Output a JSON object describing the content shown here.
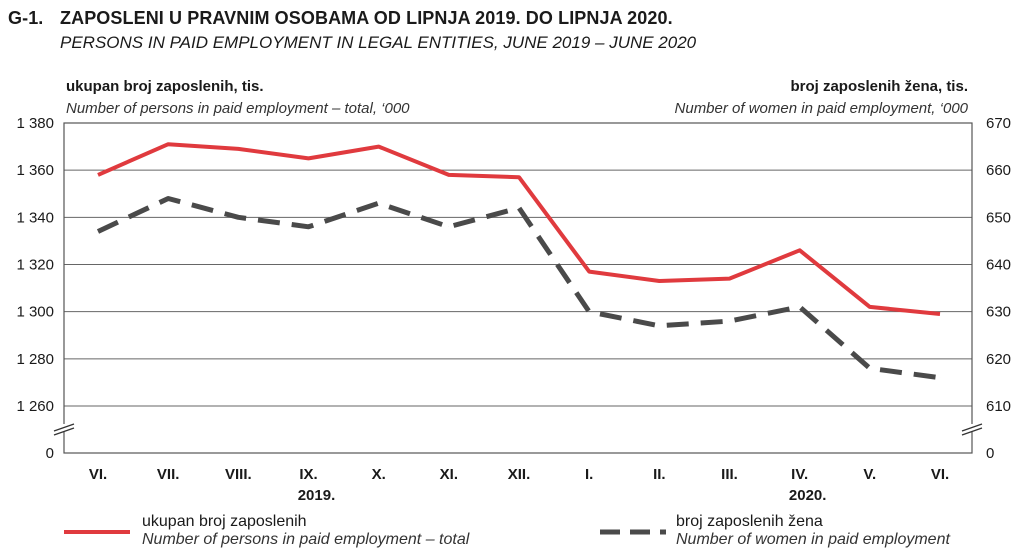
{
  "header": {
    "code": "G-1.",
    "title": "ZAPOSLENI U PRAVNIM OSOBAMA OD LIPNJA 2019. DO LIPNJA 2020.",
    "subtitle": "PERSONS IN PAID EMPLOYMENT IN LEGAL ENTITIES, JUNE 2019 – JUNE 2020"
  },
  "axes": {
    "left_title": "ukupan broj zaposlenih, tis.",
    "left_subtitle": "Number of persons in paid employment – total, ‘000",
    "right_title": "broj zaposlenih žena, tis.",
    "right_subtitle": "Number of women in paid employment, ‘000"
  },
  "legend": {
    "total_line1": "ukupan broj zaposlenih",
    "total_line2": "Number of persons in paid employment – total",
    "women_line1": "broj zaposlenih žena",
    "women_line2": "Number of women in paid employment"
  },
  "colors": {
    "total": "#e03a3e",
    "women": "#4a4a4a",
    "grid": "#666666"
  },
  "chart_data": {
    "type": "line",
    "categories": [
      "VI.",
      "VII.",
      "VIII.",
      "IX.",
      "X.",
      "XI.",
      "XII.",
      "I.",
      "II.",
      "III.",
      "IV.",
      "V.",
      "VI."
    ],
    "year_labels": [
      {
        "label": "2019.",
        "category_index": 3
      },
      {
        "label": "2020.",
        "category_index": 10
      }
    ],
    "y_left": {
      "ylim": [
        1260,
        1380
      ],
      "ticks": [
        1260,
        1280,
        1300,
        1320,
        1340,
        1360,
        1380
      ],
      "tick_labels": [
        "1 260",
        "1 280",
        "1 300",
        "1 320",
        "1 340",
        "1 360",
        "1 380"
      ],
      "break_label": "0"
    },
    "y_right": {
      "ylim": [
        610,
        670
      ],
      "ticks": [
        610,
        620,
        630,
        640,
        650,
        660,
        670
      ],
      "tick_labels": [
        "610",
        "620",
        "630",
        "640",
        "650",
        "660",
        "670"
      ],
      "break_label": "0"
    },
    "series": [
      {
        "name": "ukupan broj zaposlenih",
        "axis": "left",
        "style": "solid",
        "values": [
          1358,
          1371,
          1369,
          1365,
          1370,
          1358,
          1357,
          1317,
          1313,
          1314,
          1326,
          1302,
          1299
        ]
      },
      {
        "name": "broj zaposlenih žena",
        "axis": "right",
        "style": "dashed",
        "values": [
          647,
          654,
          650,
          648,
          653,
          648,
          652,
          630,
          627,
          628,
          631,
          618,
          616
        ]
      }
    ],
    "grid": true
  }
}
